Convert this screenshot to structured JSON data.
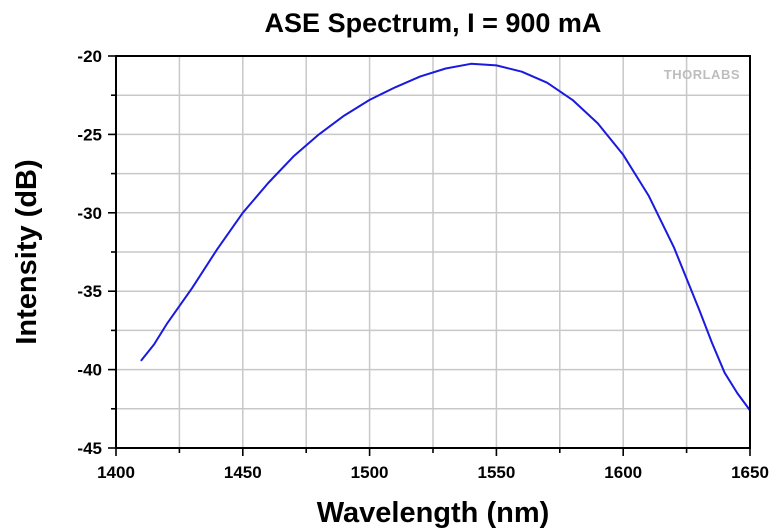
{
  "chart_data": {
    "type": "line",
    "title": "ASE Spectrum, I = 900 mA",
    "xlabel": "Wavelength (nm)",
    "ylabel": "Intensity (dB)",
    "xlim": [
      1400,
      1650
    ],
    "ylim": [
      -45,
      -20
    ],
    "xticks": [
      1400,
      1450,
      1500,
      1550,
      1600,
      1650
    ],
    "yticks": [
      -20,
      -25,
      -30,
      -35,
      -40,
      -45
    ],
    "grid": true,
    "colors": {
      "series": "#1a1adf",
      "grid": "#c8c8c8",
      "logo": "#bdbdbd"
    },
    "watermark": "THORLABS",
    "series": [
      {
        "name": "ASE Spectrum",
        "x": [
          1410,
          1415,
          1420,
          1430,
          1440,
          1450,
          1460,
          1470,
          1480,
          1490,
          1500,
          1510,
          1520,
          1530,
          1540,
          1550,
          1560,
          1570,
          1580,
          1590,
          1600,
          1610,
          1620,
          1630,
          1635,
          1640,
          1645,
          1650
        ],
        "y": [
          -39.4,
          -38.4,
          -37.1,
          -34.8,
          -32.3,
          -30.0,
          -28.1,
          -26.4,
          -25.0,
          -23.8,
          -22.8,
          -22.0,
          -21.3,
          -20.8,
          -20.5,
          -20.6,
          -21.0,
          -21.7,
          -22.8,
          -24.3,
          -26.3,
          -28.9,
          -32.2,
          -36.2,
          -38.3,
          -40.2,
          -41.5,
          -42.6
        ]
      }
    ]
  }
}
